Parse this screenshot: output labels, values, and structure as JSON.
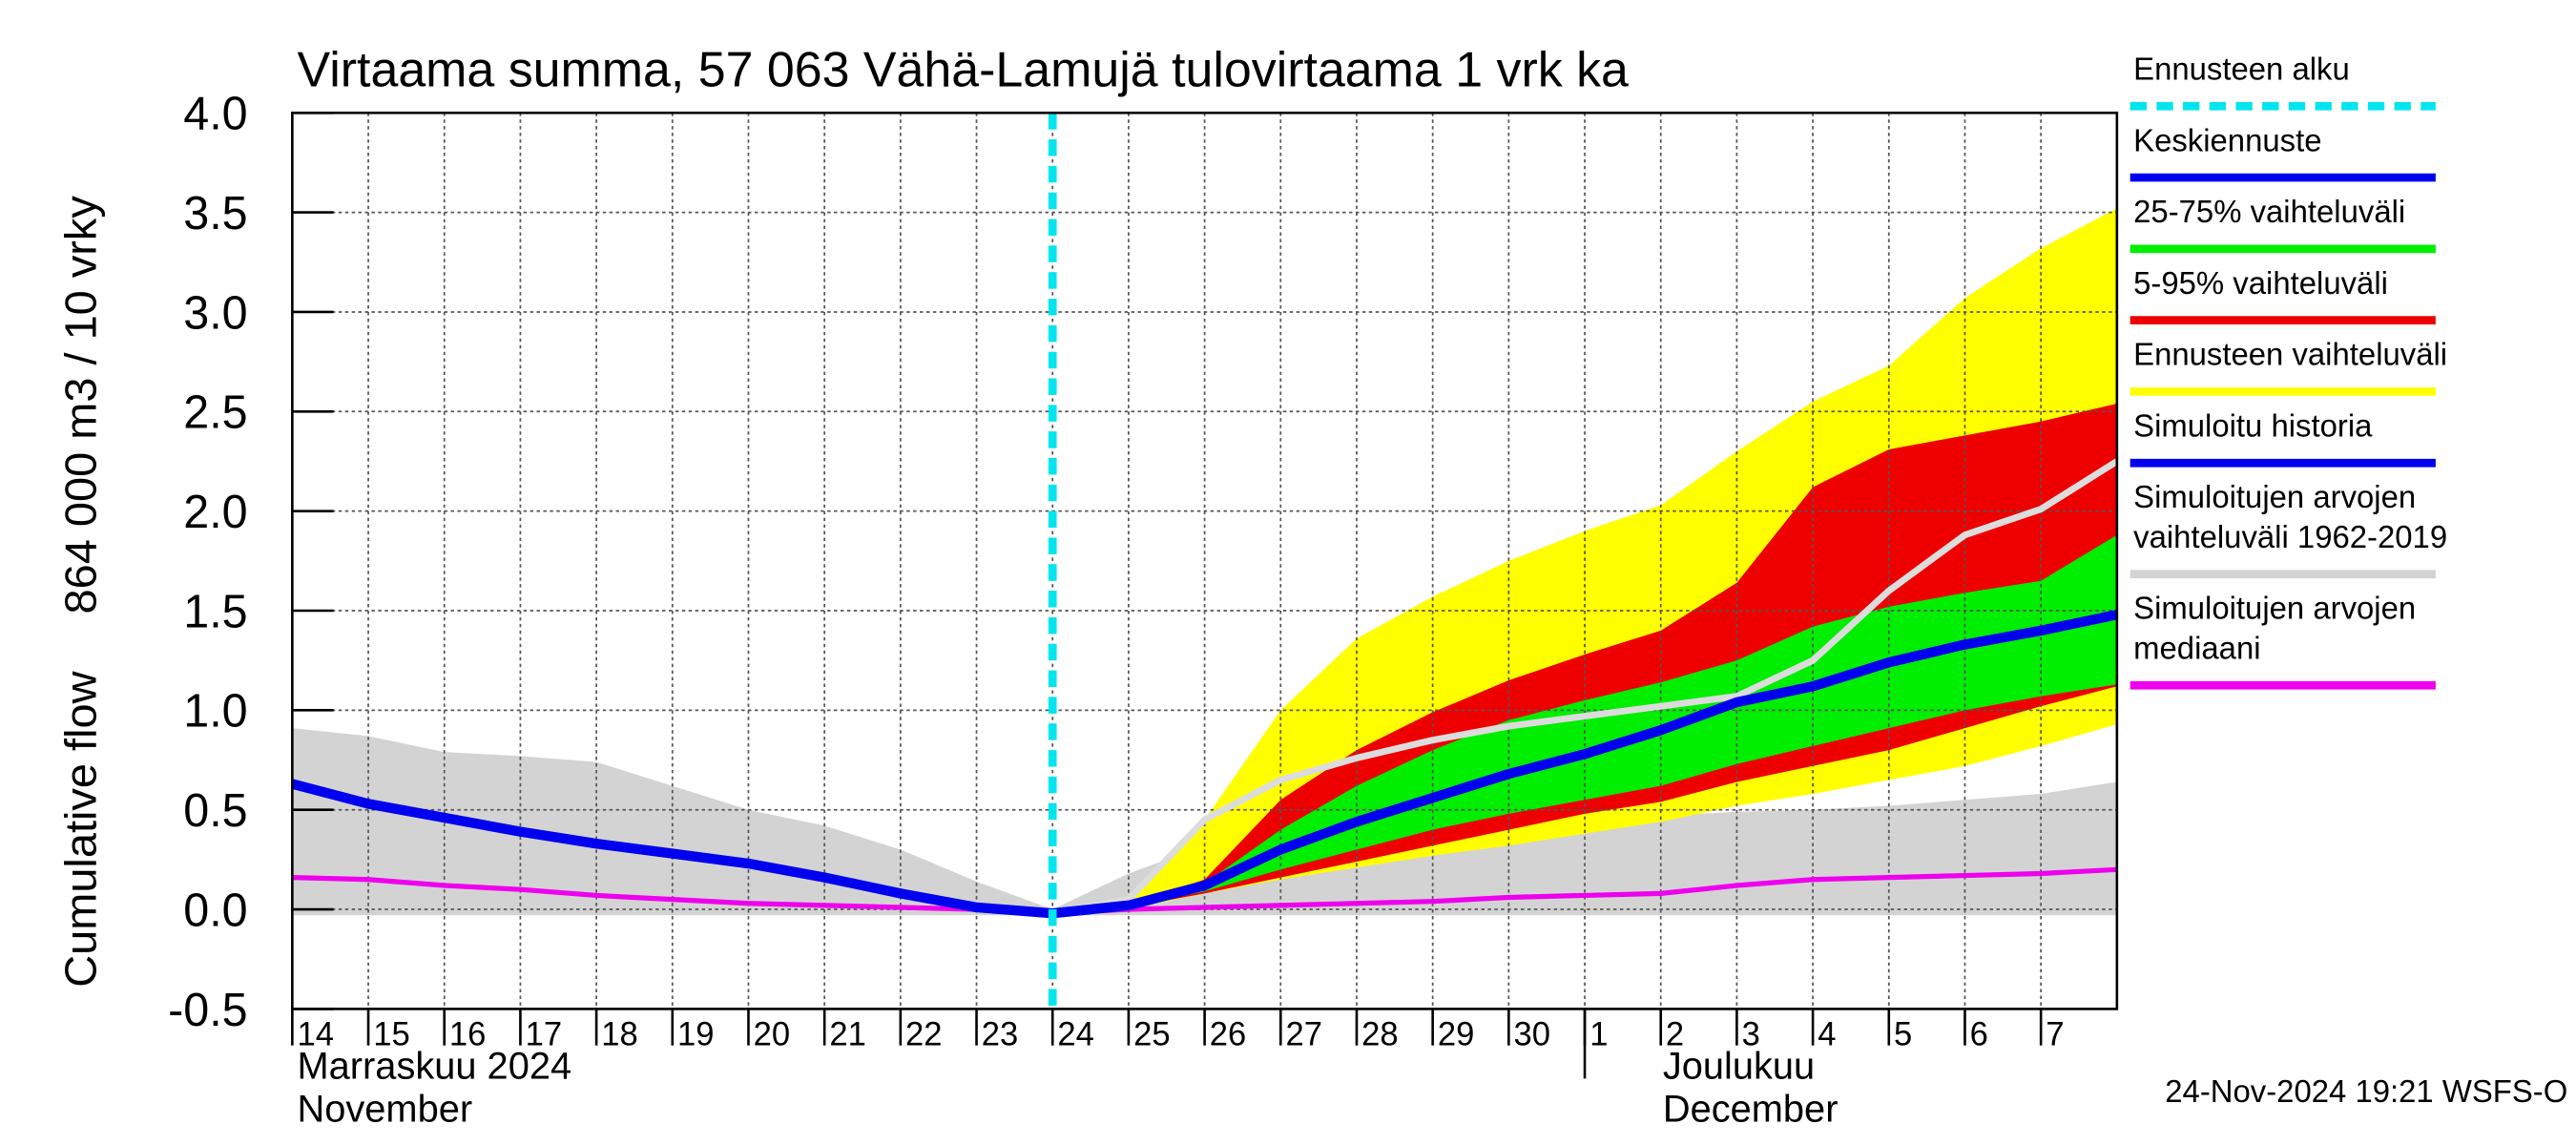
{
  "chart_data": {
    "type": "area",
    "title": "Virtaama summa, 57 063 Vähä-Lamujä tulovirtaama 1 vrk ka",
    "ylabel": "Cumulative flow",
    "ylabel2": "864 000 m3 / 10 vrky",
    "month_labels": [
      "Marraskuu 2024",
      "November",
      "Joulukuu",
      "December"
    ],
    "timestamp": "24-Nov-2024 19:21 WSFS-O",
    "x": [
      "2024-11-14",
      "2024-11-15",
      "2024-11-16",
      "2024-11-17",
      "2024-11-18",
      "2024-11-19",
      "2024-11-20",
      "2024-11-21",
      "2024-11-22",
      "2024-11-23",
      "2024-11-24",
      "2024-11-25",
      "2024-11-26",
      "2024-11-27",
      "2024-11-28",
      "2024-11-29",
      "2024-11-30",
      "2024-12-01",
      "2024-12-02",
      "2024-12-03",
      "2024-12-04",
      "2024-12-05",
      "2024-12-06",
      "2024-12-07",
      "2024-12-08"
    ],
    "xlim": [
      "2024-11-14",
      "2024-12-08"
    ],
    "xticks": [
      {
        "value": "2024-11-14",
        "label": "14"
      },
      {
        "value": "2024-11-15",
        "label": "15"
      },
      {
        "value": "2024-11-16",
        "label": "16"
      },
      {
        "value": "2024-11-17",
        "label": "17"
      },
      {
        "value": "2024-11-18",
        "label": "18"
      },
      {
        "value": "2024-11-19",
        "label": "19"
      },
      {
        "value": "2024-11-20",
        "label": "20"
      },
      {
        "value": "2024-11-21",
        "label": "21"
      },
      {
        "value": "2024-11-22",
        "label": "22"
      },
      {
        "value": "2024-11-23",
        "label": "23"
      },
      {
        "value": "2024-11-24",
        "label": "24"
      },
      {
        "value": "2024-11-25",
        "label": "25"
      },
      {
        "value": "2024-11-26",
        "label": "26"
      },
      {
        "value": "2024-11-27",
        "label": "27"
      },
      {
        "value": "2024-11-28",
        "label": "28"
      },
      {
        "value": "2024-11-29",
        "label": "29"
      },
      {
        "value": "2024-11-30",
        "label": "30"
      },
      {
        "value": "2024-12-01",
        "label": "1"
      },
      {
        "value": "2024-12-02",
        "label": "2"
      },
      {
        "value": "2024-12-03",
        "label": "3"
      },
      {
        "value": "2024-12-04",
        "label": "4"
      },
      {
        "value": "2024-12-05",
        "label": "5"
      },
      {
        "value": "2024-12-06",
        "label": "6"
      },
      {
        "value": "2024-12-07",
        "label": "7"
      }
    ],
    "month_boundary": "2024-12-01",
    "ylim": [
      -0.5,
      4.0
    ],
    "yticks": [
      -0.5,
      {
        "value": 0,
        "label": "0.0"
      },
      0.5,
      {
        "value": 1,
        "label": "1.0"
      },
      1.5,
      {
        "value": 2,
        "label": "2.0"
      },
      2.5,
      {
        "value": 3,
        "label": "3.0"
      },
      3.5,
      {
        "value": 4,
        "label": "4.0"
      }
    ],
    "grid": true,
    "series": [
      {
        "name": [
          "Ennusteen alku"
        ],
        "kind": "vline",
        "color": "#00e5ee",
        "x": "2024-11-24"
      },
      {
        "name": [
          "Keskiennuste"
        ],
        "kind": "line",
        "color": "#0000ee",
        "values": [
          null,
          null,
          null,
          null,
          null,
          null,
          null,
          null,
          null,
          null,
          -0.02,
          0.02,
          0.12,
          0.3,
          0.44,
          0.56,
          0.68,
          0.78,
          0.9,
          1.04,
          1.12,
          1.24,
          1.33,
          1.4,
          1.48
        ]
      },
      {
        "name": [
          "25-75% vaihteluväli"
        ],
        "kind": "band",
        "color": "#00ee00",
        "values": [
          null,
          null,
          null,
          null,
          null,
          null,
          null,
          null,
          null,
          null,
          -0.02,
          0.02,
          0.13,
          0.4,
          0.62,
          0.8,
          0.95,
          1.05,
          1.14,
          1.25,
          1.42,
          1.52,
          1.59,
          1.65,
          1.88
        ],
        "lower": [
          null,
          null,
          null,
          null,
          null,
          null,
          null,
          null,
          null,
          null,
          -0.02,
          0.01,
          0.09,
          0.2,
          0.3,
          0.4,
          0.48,
          0.55,
          0.62,
          0.73,
          0.82,
          0.91,
          1.0,
          1.07,
          1.13
        ]
      },
      {
        "name": [
          "5-95% vaihteluväli"
        ],
        "kind": "band",
        "color": "#ee0000",
        "values": [
          null,
          null,
          null,
          null,
          null,
          null,
          null,
          null,
          null,
          null,
          -0.02,
          0.02,
          0.15,
          0.55,
          0.8,
          0.99,
          1.15,
          1.28,
          1.4,
          1.64,
          2.12,
          2.31,
          2.38,
          2.45,
          2.54
        ],
        "lower": [
          null,
          null,
          null,
          null,
          null,
          null,
          null,
          null,
          null,
          null,
          -0.02,
          0.01,
          0.08,
          0.16,
          0.24,
          0.32,
          0.4,
          0.48,
          0.54,
          0.64,
          0.72,
          0.8,
          0.91,
          1.02,
          1.12
        ]
      },
      {
        "name": [
          "Ennusteen vaihteluväli"
        ],
        "kind": "band",
        "color": "#ffff00",
        "values": [
          null,
          null,
          null,
          null,
          null,
          null,
          null,
          null,
          null,
          null,
          -0.02,
          0.05,
          0.45,
          1.0,
          1.36,
          1.57,
          1.75,
          1.9,
          2.03,
          2.3,
          2.55,
          2.73,
          3.07,
          3.32,
          3.52
        ],
        "lower": [
          null,
          null,
          null,
          null,
          null,
          null,
          null,
          null,
          null,
          null,
          -0.02,
          0.0,
          0.08,
          0.15,
          0.21,
          0.27,
          0.32,
          0.38,
          0.44,
          0.52,
          0.58,
          0.65,
          0.72,
          0.82,
          0.93
        ]
      },
      {
        "name": [
          "Simuloitu historia"
        ],
        "kind": "line",
        "color": "#0000ee",
        "values": [
          0.63,
          0.53,
          0.46,
          0.39,
          0.33,
          0.28,
          0.23,
          0.16,
          0.08,
          0.01,
          -0.02,
          null,
          null,
          null,
          null,
          null,
          null,
          null,
          null,
          null,
          null,
          null,
          null,
          null,
          null
        ]
      },
      {
        "name": [
          "Simuloitujen arvojen",
          "vaihteluväli 1962-2019"
        ],
        "kind": "band",
        "color": "#d3d3d3",
        "values": [
          0.91,
          0.87,
          0.79,
          0.77,
          0.74,
          0.62,
          0.5,
          0.42,
          0.3,
          0.14,
          0.0,
          0.18,
          0.32,
          0.38,
          0.4,
          0.42,
          0.44,
          0.46,
          0.47,
          0.49,
          0.5,
          0.52,
          0.55,
          0.58,
          0.64
        ],
        "lower": [
          -0.03,
          -0.03,
          -0.03,
          -0.03,
          -0.03,
          -0.03,
          -0.03,
          -0.03,
          -0.03,
          -0.03,
          -0.03,
          -0.03,
          -0.03,
          -0.03,
          -0.03,
          -0.03,
          -0.03,
          -0.03,
          -0.03,
          -0.03,
          -0.03,
          -0.03,
          -0.03,
          -0.03,
          -0.03
        ]
      },
      {
        "name": [
          "Simuloitujen arvojen",
          "mediaani"
        ],
        "kind": "line",
        "color": "#ee00ee",
        "values": [
          0.16,
          0.15,
          0.12,
          0.1,
          0.07,
          0.05,
          0.03,
          0.02,
          0.01,
          0.0,
          -0.02,
          0.0,
          0.01,
          0.02,
          0.03,
          0.04,
          0.06,
          0.07,
          0.08,
          0.12,
          0.15,
          0.16,
          0.17,
          0.18,
          0.2
        ]
      },
      {
        "kind": "line",
        "color": "#dcdcdc",
        "values": [
          null,
          null,
          null,
          null,
          null,
          null,
          null,
          null,
          null,
          null,
          -0.02,
          0.05,
          0.45,
          0.65,
          0.76,
          0.85,
          0.92,
          0.97,
          1.02,
          1.07,
          1.25,
          1.6,
          1.88,
          2.01,
          2.25
        ]
      }
    ]
  }
}
